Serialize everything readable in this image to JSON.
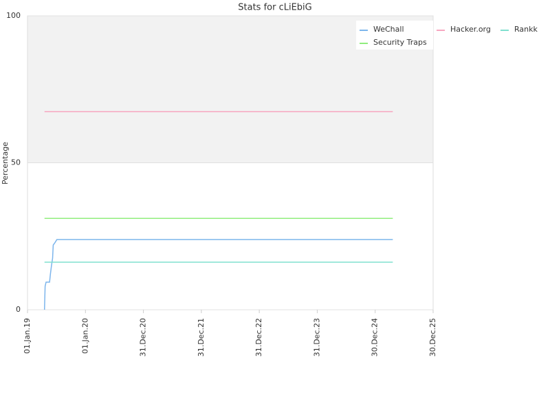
{
  "chart_data": {
    "type": "line",
    "title": "Stats for cLiEbiG",
    "y_label": "Percentage",
    "xlim": [
      "2019-01-01",
      "2025-12-30"
    ],
    "xticks": [
      {
        "value": "2019-01-01",
        "label": "01.Jan.19"
      },
      {
        "value": "2020-01-01",
        "label": "01.Jan.20"
      },
      {
        "value": "2020-12-31",
        "label": "31.Dec.20"
      },
      {
        "value": "2021-12-31",
        "label": "31.Dec.21"
      },
      {
        "value": "2022-12-31",
        "label": "31.Dec.22"
      },
      {
        "value": "2023-12-31",
        "label": "31.Dec.23"
      },
      {
        "value": "2024-12-30",
        "label": "30.Dec.24"
      },
      {
        "value": "2025-12-30",
        "label": "30.Dec.25"
      }
    ],
    "ylim": [
      0,
      100
    ],
    "yticks": [
      0,
      50,
      100
    ],
    "plot_bands": [
      {
        "from": 50,
        "to": 100,
        "color": "#f2f2f2"
      }
    ],
    "legend": "top-right",
    "series": [
      {
        "name": "WeChall",
        "color": "#7cb5ec",
        "x": [
          "2019-04-18",
          "2019-04-22",
          "2019-04-28",
          "2019-05-20",
          "2019-05-25",
          "2019-06-01",
          "2019-06-08",
          "2019-06-12",
          "2019-06-25",
          "2019-07-05",
          "2025-04-20"
        ],
        "values": [
          0,
          8,
          9.4,
          9.4,
          12,
          15,
          17.5,
          22,
          23,
          23.9,
          23.9
        ]
      },
      {
        "name": "Hacker.org",
        "color": "#f7a6c0",
        "x": [
          "2019-04-18",
          "2025-04-20"
        ],
        "values": [
          67.4,
          67.4
        ]
      },
      {
        "name": "Rankk",
        "color": "#7fe0cf",
        "x": [
          "2019-04-18",
          "2025-04-20"
        ],
        "values": [
          16.2,
          16.2
        ]
      },
      {
        "name": "Security Traps",
        "color": "#90ed7d",
        "x": [
          "2019-04-18",
          "2025-04-20"
        ],
        "values": [
          31.1,
          31.1
        ]
      }
    ]
  }
}
